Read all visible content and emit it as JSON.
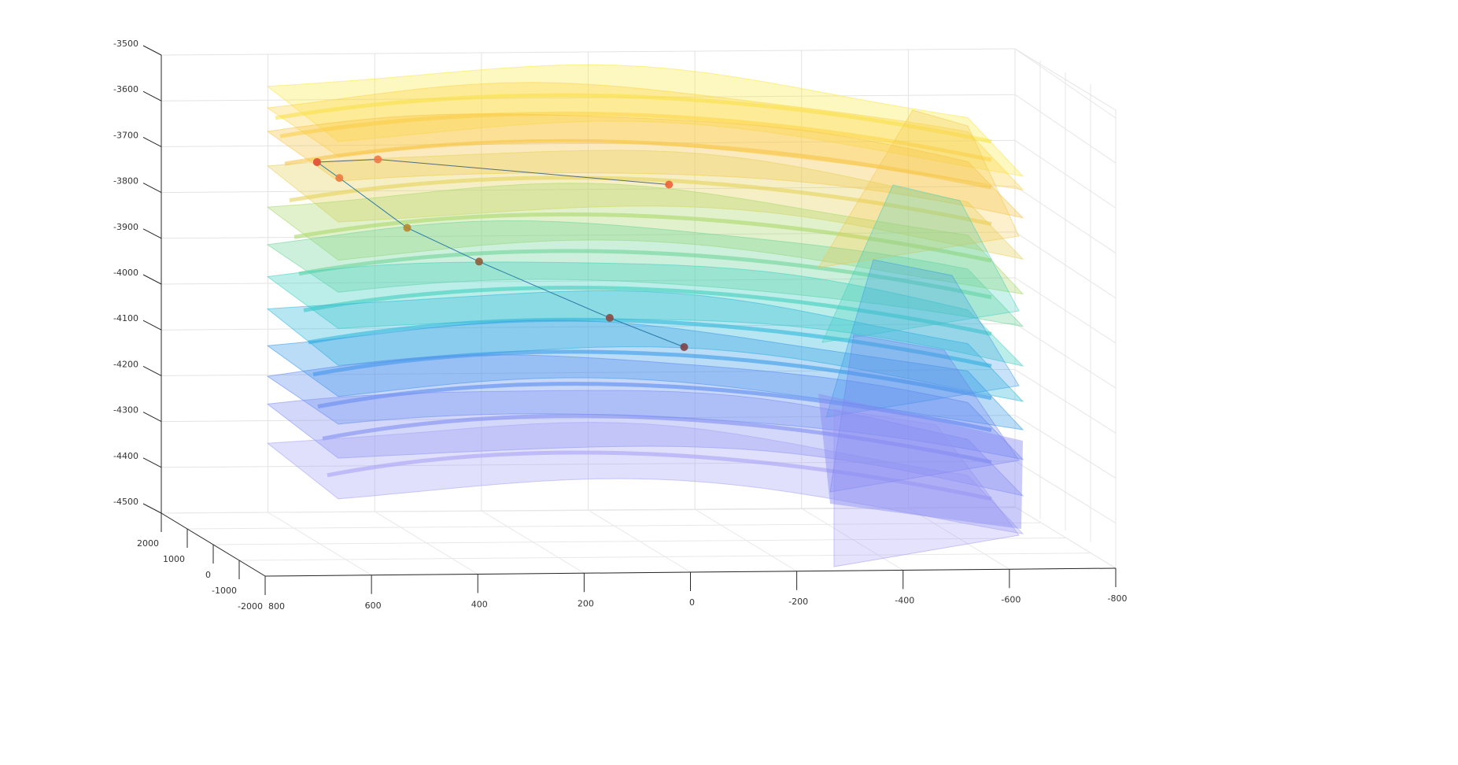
{
  "chart_data": {
    "type": "surface3d",
    "z_axis": {
      "ticks": [
        "-3500",
        "-3600",
        "-3700",
        "-3800",
        "-3900",
        "-4000",
        "-4100",
        "-4200",
        "-4300",
        "-4400",
        "-4500"
      ],
      "range": [
        -4500,
        -3500
      ]
    },
    "x_axis": {
      "ticks": [
        "800",
        "600",
        "400",
        "200",
        "0",
        "-200",
        "-400",
        "-600",
        "-800"
      ],
      "range": [
        -800,
        800
      ],
      "reversed": true
    },
    "y_axis": {
      "ticks": [
        "2000",
        "1000",
        "0",
        "-1000",
        "-2000"
      ],
      "range": [
        -2000,
        2000
      ]
    },
    "grid": true,
    "colormap": "parula",
    "surface_alpha": 0.35,
    "layers": [
      {
        "color": "#f9e84a",
        "depth_level": -3620
      },
      {
        "color": "#fcd54a",
        "depth_level": -3660
      },
      {
        "color": "#f7c448",
        "depth_level": -3720
      },
      {
        "color": "#e6d25a",
        "depth_level": -3800
      },
      {
        "color": "#aad86a",
        "depth_level": -3880
      },
      {
        "color": "#6fd49a",
        "depth_level": -3960
      },
      {
        "color": "#3fcfc0",
        "depth_level": -4040
      },
      {
        "color": "#2fb7db",
        "depth_level": -4110
      },
      {
        "color": "#3a9be8",
        "depth_level": -4180
      },
      {
        "color": "#5b8bf0",
        "depth_level": -4250
      },
      {
        "color": "#8090f2",
        "depth_level": -4320
      },
      {
        "color": "#a6a4f5",
        "depth_level": -4400
      }
    ],
    "wells": [
      {
        "color": "#556b7a",
        "points": [
          {
            "x": 640,
            "y": 0,
            "z": -3735,
            "color": "#e2583a"
          },
          {
            "x": 520,
            "y": 0,
            "z": -3730,
            "color": "#ee7a40"
          },
          {
            "x": -55,
            "y": 0,
            "z": -3790,
            "color": "#f06035"
          }
        ]
      },
      {
        "color": "#2a7aa8",
        "points": [
          {
            "x": 640,
            "y": 0,
            "z": -3735,
            "color": "#e2583a"
          },
          {
            "x": 596,
            "y": 0,
            "z": -3770,
            "color": "#ee7a40"
          },
          {
            "x": 462,
            "y": 0,
            "z": -3880,
            "color": "#b8862e"
          },
          {
            "x": 320,
            "y": 0,
            "z": -3955,
            "color": "#8e5e3a"
          },
          {
            "x": 62,
            "y": 0,
            "z": -4080,
            "color": "#8a4a42"
          },
          {
            "x": -85,
            "y": 0,
            "z": -4145,
            "color": "#7e4244"
          }
        ]
      }
    ]
  }
}
